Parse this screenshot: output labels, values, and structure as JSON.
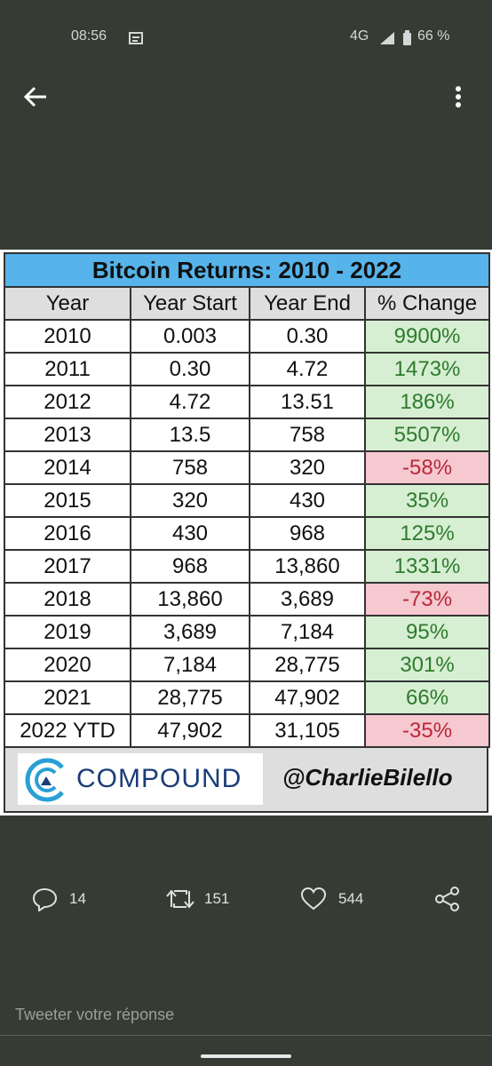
{
  "status": {
    "time": "08:56",
    "network": "4G",
    "battery": "66 %"
  },
  "table": {
    "title": "Bitcoin Returns: 2010 - 2022",
    "header": [
      "Year",
      "Year Start",
      "Year End",
      "% Change"
    ],
    "rows": [
      [
        "2010",
        "0.003",
        "0.30",
        "9900%"
      ],
      [
        "2011",
        "0.30",
        "4.72",
        "1473%"
      ],
      [
        "2012",
        "4.72",
        "13.51",
        "186%"
      ],
      [
        "2013",
        "13.5",
        "758",
        "5507%"
      ],
      [
        "2014",
        "758",
        "320",
        "-58%"
      ],
      [
        "2015",
        "320",
        "430",
        "35%"
      ],
      [
        "2016",
        "430",
        "968",
        "125%"
      ],
      [
        "2017",
        "968",
        "13,860",
        "1331%"
      ],
      [
        "2018",
        "13,860",
        "3,689",
        "-73%"
      ],
      [
        "2019",
        "3,689",
        "7,184",
        "95%"
      ],
      [
        "2020",
        "7,184",
        "28,775",
        "301%"
      ],
      [
        "2021",
        "28,775",
        "47,902",
        "66%"
      ],
      [
        "2022 YTD",
        "47,902",
        "31,105",
        "-35%"
      ]
    ]
  },
  "footer": {
    "logo": "COMPOUND",
    "handle": "@CharlieBilello"
  },
  "actions": {
    "reply": "14",
    "retweet": "151",
    "like": "544"
  },
  "reply_placeholder": "Tweeter votre réponse"
}
